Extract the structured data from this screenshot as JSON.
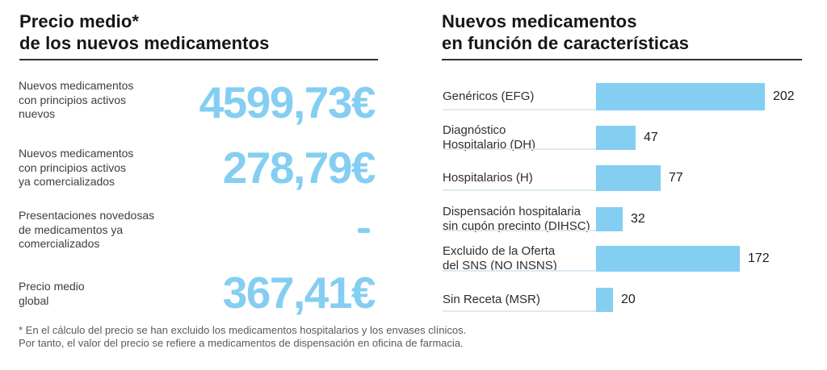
{
  "colors": {
    "accent_blue": "#84CEF1",
    "underline_blue": "#dbe9f2",
    "rule_dark": "#2e2e2e",
    "title_text": "#161616",
    "label_text": "#3d3d3d",
    "footnote_text": "#5a5a5a"
  },
  "left_panel": {
    "title_lines": [
      "Precio medio*",
      "de los nuevos medicamentos"
    ],
    "rows": [
      {
        "label_lines": [
          "Nuevos medicamentos",
          "con principios activos",
          "nuevos"
        ],
        "value": "4599,73€",
        "is_dash": false
      },
      {
        "label_lines": [
          "Nuevos medicamentos",
          "con principios activos",
          "ya comercializados"
        ],
        "value": "278,79€",
        "is_dash": false
      },
      {
        "label_lines": [
          "Presentaciones novedosas",
          "de medicamentos ya",
          "comercializados"
        ],
        "value": "-",
        "is_dash": true
      },
      {
        "label_lines": [
          "Precio medio",
          "global"
        ],
        "value": "367,41€",
        "is_dash": false
      }
    ],
    "footnote_lines": [
      "* En el cálculo del precio se han excluido los medicamentos hospitalarios y los envases clínicos.",
      "Por tanto, el valor del precio se refiere a medicamentos de dispensación en oficina de farmacia."
    ]
  },
  "right_panel": {
    "title_lines": [
      "Nuevos medicamentos",
      "en función de características"
    ]
  },
  "chart_data": {
    "type": "bar",
    "orientation": "horizontal",
    "title": "Nuevos medicamentos en función de características",
    "categories": [
      "Genéricos (EFG)",
      "Diagnóstico Hospitalario (DH)",
      "Hospitalarios (H)",
      "Dispensación hospitalaria sin cupón precinto (DIHSC)",
      "Excluido de la Oferta del SNS (NO INSNS)",
      "Sin Receta (MSR)"
    ],
    "category_lines": [
      [
        "Genéricos (EFG)"
      ],
      [
        "Diagnóstico",
        "Hospitalario (DH)"
      ],
      [
        "Hospitalarios (H)"
      ],
      [
        "Dispensación hospitalaria",
        "sin cupón precinto (DIHSC)"
      ],
      [
        "Excluido de la Oferta",
        "del SNS (NO INSNS)"
      ],
      [
        "Sin Receta (MSR)"
      ]
    ],
    "values": [
      202,
      47,
      77,
      32,
      172,
      20
    ],
    "data_labels": true,
    "xlim": [
      0,
      210
    ],
    "grid": false,
    "legend": false,
    "bar_color": "#84CEF1",
    "xlabel": "",
    "ylabel": ""
  }
}
